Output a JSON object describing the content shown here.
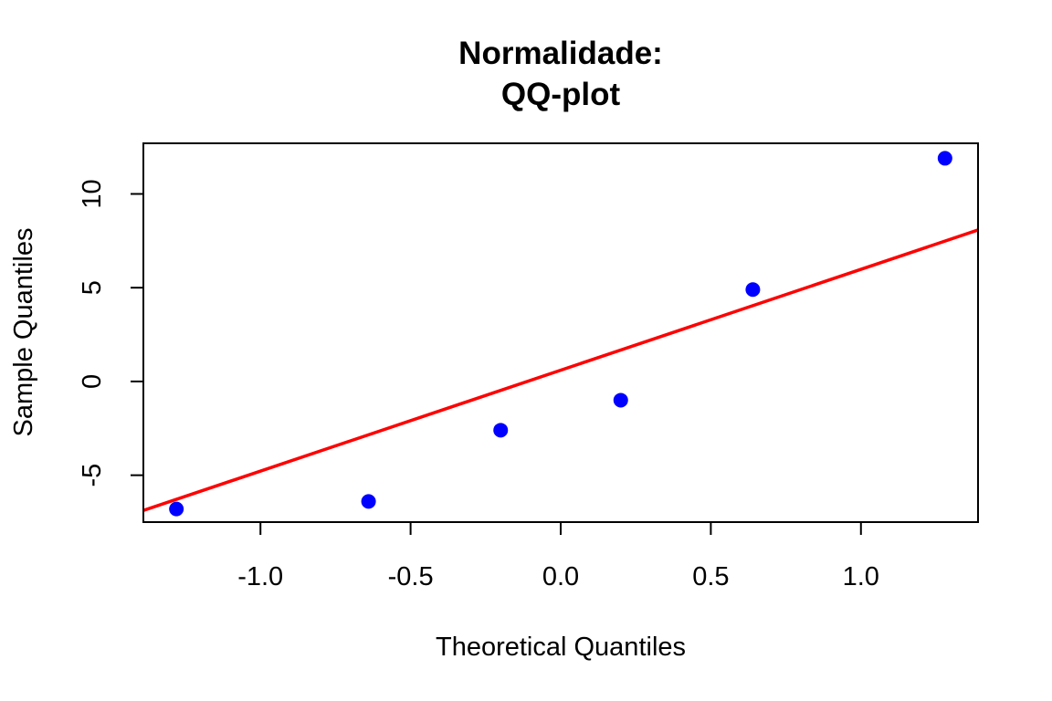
{
  "chart_data": {
    "type": "scatter",
    "title": [
      "Normalidade:",
      "QQ-plot"
    ],
    "xlabel": "Theoretical Quantiles",
    "ylabel": "Sample Quantiles",
    "xlim": [
      -1.39,
      1.39
    ],
    "ylim": [
      -7.5,
      12.7
    ],
    "xticks": [
      -1.0,
      -0.5,
      0.0,
      0.5,
      1.0
    ],
    "xtick_labels": [
      "-1.0",
      "-0.5",
      "0.0",
      "0.5",
      "1.0"
    ],
    "yticks": [
      -5,
      0,
      5,
      10
    ],
    "ytick_labels": [
      "-5",
      "0",
      "5",
      "10"
    ],
    "grid": false,
    "legend": "none",
    "series": [
      {
        "points": [
          {
            "x": -1.28,
            "y": -6.8
          },
          {
            "x": -0.64,
            "y": -6.4
          },
          {
            "x": -0.2,
            "y": -2.6
          },
          {
            "x": 0.2,
            "y": -1.0
          },
          {
            "x": 0.64,
            "y": 4.9
          },
          {
            "x": 1.28,
            "y": 11.9
          }
        ],
        "color": "#0000ff"
      }
    ],
    "reference_line": {
      "intercept": 0.6,
      "slope": 5.38,
      "color": "#ff0000"
    }
  }
}
